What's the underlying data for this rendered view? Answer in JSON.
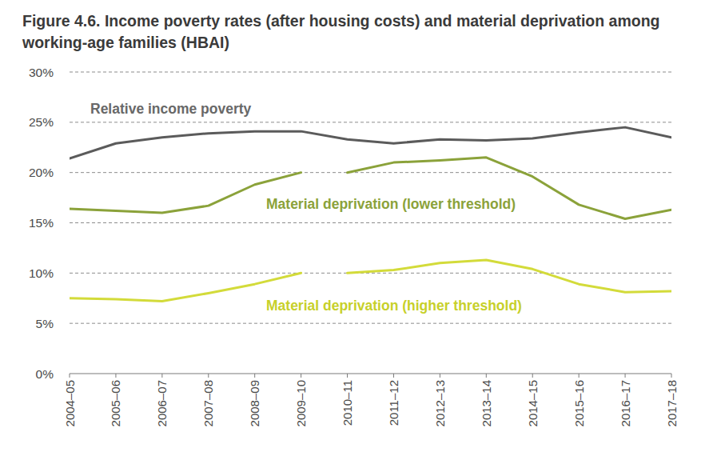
{
  "chart_data": {
    "type": "line",
    "title": "Figure 4.6. Income poverty rates (after housing costs) and material deprivation among working-age families (HBAI)",
    "categories": [
      "2004–05",
      "2005–06",
      "2006–07",
      "2007–08",
      "2008–09",
      "2009–10",
      "2010–11",
      "2011–12",
      "2012–13",
      "2013–14",
      "2014–15",
      "2015–16",
      "2016–17",
      "2017–18"
    ],
    "series": [
      {
        "name": "Relative income poverty",
        "color": "#5b5b5b",
        "values": [
          21.4,
          22.9,
          23.5,
          23.9,
          24.1,
          24.1,
          23.3,
          22.9,
          23.3,
          23.2,
          23.4,
          24.0,
          24.5,
          23.5
        ]
      },
      {
        "name": "Material deprivation (lower threshold)",
        "color": "#8ba23a",
        "values": [
          16.4,
          16.2,
          16.0,
          16.7,
          18.8,
          20.0,
          null,
          null,
          null,
          null,
          null,
          null,
          null,
          null
        ]
      },
      {
        "color": "#8ba23a",
        "values": [
          null,
          null,
          null,
          null,
          null,
          null,
          20.0,
          21.0,
          21.2,
          21.5,
          19.6,
          16.8,
          15.4,
          16.3
        ]
      },
      {
        "name": "Material deprivation (higher threshold)",
        "color": "#d3db3a",
        "values": [
          7.5,
          7.4,
          7.2,
          8.0,
          8.9,
          10.0,
          null,
          null,
          null,
          null,
          null,
          null,
          null,
          null
        ]
      },
      {
        "color": "#d3db3a",
        "values": [
          null,
          null,
          null,
          null,
          null,
          null,
          10.0,
          10.3,
          11.0,
          11.3,
          10.4,
          8.9,
          8.1,
          8.2
        ]
      }
    ],
    "ylim": [
      0,
      30
    ],
    "yticks": [
      {
        "value": 0,
        "label": "0%"
      },
      {
        "value": 5,
        "label": "5%"
      },
      {
        "value": 10,
        "label": "10%"
      },
      {
        "value": 15,
        "label": "15%"
      },
      {
        "value": 20,
        "label": "20%"
      },
      {
        "value": 25,
        "label": "25%"
      },
      {
        "value": 30,
        "label": "30%"
      }
    ],
    "grid": true
  }
}
